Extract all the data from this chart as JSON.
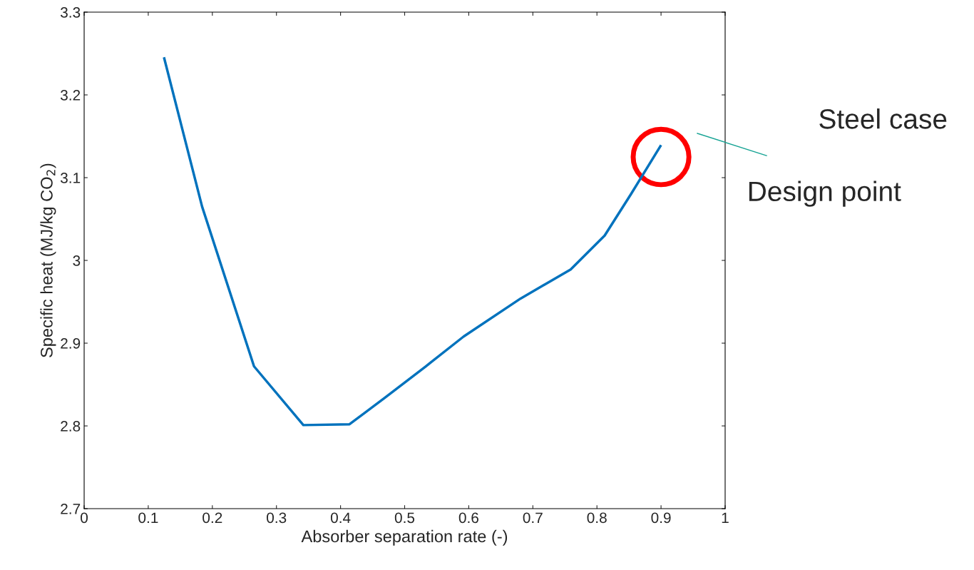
{
  "chart_data": {
    "type": "line",
    "xlabel": "Absorber separation rate (-)",
    "ylabel": "Specific heat (MJ/kg CO$_{2}$)",
    "x": [
      0.125,
      0.184,
      0.265,
      0.342,
      0.414,
      0.469,
      0.533,
      0.592,
      0.681,
      0.759,
      0.812,
      0.853,
      0.899
    ],
    "series": [
      {
        "color": "#0072bd",
        "values": [
          3.244,
          3.065,
          2.872,
          2.801,
          2.802,
          2.834,
          2.872,
          2.908,
          2.954,
          2.989,
          3.03,
          3.08,
          3.138
        ]
      }
    ],
    "xlim": [
      0,
      1
    ],
    "xticks": [
      0,
      0.1,
      0.2,
      0.3,
      0.4,
      0.5,
      0.6,
      0.7,
      0.8,
      0.9,
      1
    ],
    "ylim": [
      2.7,
      3.3
    ],
    "yticks": [
      2.7,
      2.8,
      2.9,
      3,
      3.1,
      3.2,
      3.3
    ],
    "grid": false,
    "legend": false,
    "marker": "none",
    "line_style": "solid",
    "annotations": [
      "Design point",
      "Steel case"
    ]
  }
}
